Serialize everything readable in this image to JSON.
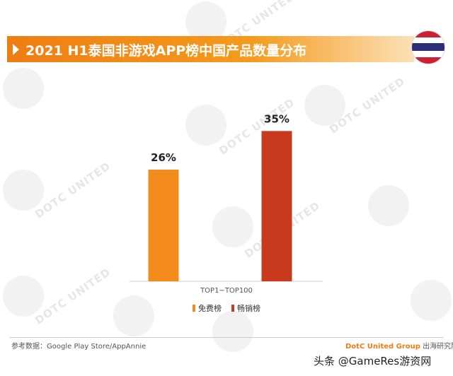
{
  "header": {
    "title": "2021 H1泰国非游戏APP榜中国产品数量分布"
  },
  "watermark": {
    "text": "DOTC UNITED"
  },
  "flag": {
    "stripes": [
      "#cc2233",
      "#ffffff",
      "#2b2f78",
      "#ffffff",
      "#cc2233"
    ]
  },
  "chart_data": {
    "type": "bar",
    "categories": [
      "TOP1~TOP100"
    ],
    "series": [
      {
        "name": "免费榜",
        "values": [
          26
        ],
        "label": "26%",
        "color": "#f28a1c"
      },
      {
        "name": "畅销榜",
        "values": [
          35
        ],
        "label": "35%",
        "color": "#c8391e"
      }
    ],
    "unit": "%",
    "ylim": [
      0,
      40
    ],
    "grid": false,
    "legend_position": "bottom"
  },
  "footer": {
    "source": "参考数据：Google Play Store/AppAnnie",
    "brand_name": "DotC United Group",
    "brand_suffix": " 出海研究院",
    "credit": "头条 @GameRes游资网"
  }
}
